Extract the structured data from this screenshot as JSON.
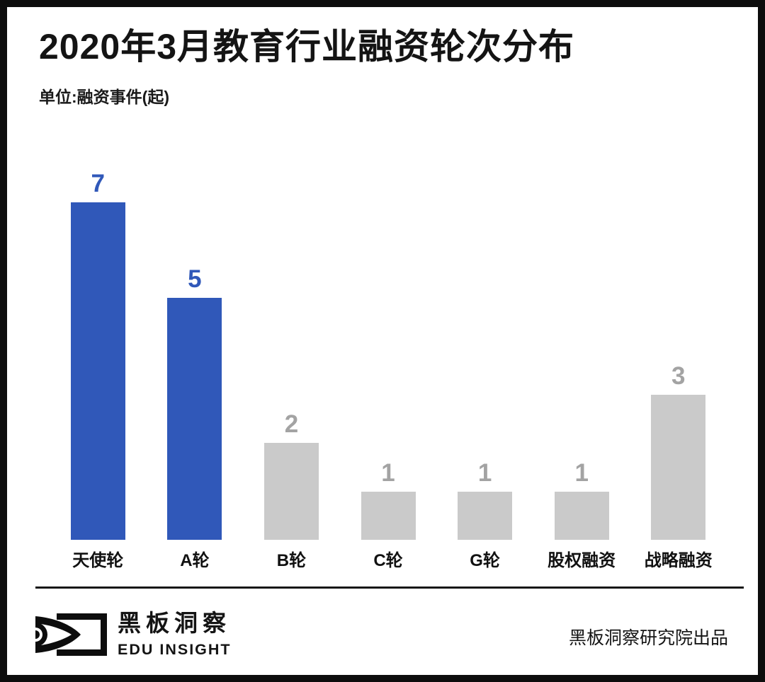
{
  "header": {
    "title": "2020年3月教育行业融资轮次分布",
    "unit": "单位:融资事件(起)"
  },
  "chart_data": {
    "type": "bar",
    "title": "2020年3月教育行业融资轮次分布",
    "unit_note": "单位:融资事件(起)",
    "categories": [
      "天使轮",
      "A轮",
      "B轮",
      "C轮",
      "G轮",
      "股权融资",
      "战略融资"
    ],
    "values": [
      7,
      5,
      2,
      1,
      1,
      1,
      3
    ],
    "bar_colors": [
      "#3058B9",
      "#3058B9",
      "#CACACA",
      "#CACACA",
      "#CACACA",
      "#CACACA",
      "#CACACA"
    ],
    "value_label_colors": [
      "#3058B9",
      "#3058B9",
      "#A3A3A3",
      "#A3A3A3",
      "#A3A3A3",
      "#A3A3A3",
      "#A3A3A3"
    ],
    "xlabel": "",
    "ylabel": "",
    "ylim": [
      0,
      7.6
    ],
    "grid": false,
    "legend": null,
    "value_labels_shown": true
  },
  "footer": {
    "brand_cn": "黑板洞察",
    "brand_en": "EDU INSIGHT",
    "credit": "黑板洞察研究院出品",
    "logo_icon": "eye-bracket-logo"
  },
  "colors": {
    "accent_blue": "#3058B9",
    "bar_gray": "#CACACA",
    "value_gray": "#A3A3A3",
    "ink": "#141414",
    "frame": "#0d0d0d"
  }
}
